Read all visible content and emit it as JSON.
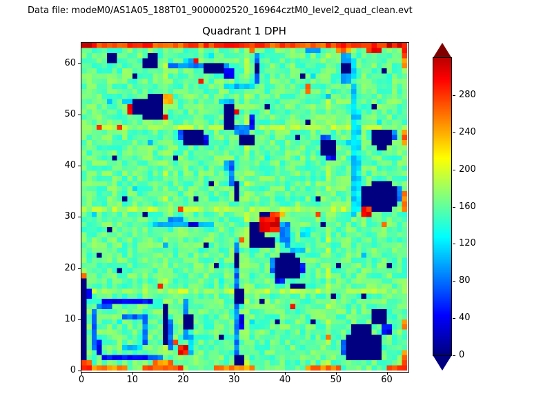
{
  "header": {
    "datafile_label": "Data file: modeM0/AS1A05_188T01_9000002520_16964cztM0_level2_quad_clean.evt"
  },
  "chart_data": {
    "type": "heatmap",
    "title": "Quadrant 1 DPH",
    "xlabel": "",
    "ylabel": "",
    "xlim": [
      0,
      64
    ],
    "ylim": [
      0,
      64
    ],
    "xticks": [
      0,
      10,
      20,
      30,
      40,
      50,
      60
    ],
    "yticks": [
      0,
      10,
      20,
      30,
      40,
      50,
      60
    ],
    "grid": false,
    "colormap": "jet",
    "colorbar": {
      "ticks": [
        0,
        40,
        80,
        120,
        160,
        200,
        240,
        280
      ],
      "vmin": 0,
      "vmax": 320,
      "extend": "both",
      "low_arrow_color": "#000080",
      "high_arrow_color": "#800000"
    },
    "background_value": 160,
    "noise_amplitude": 20,
    "features_format": "[x, y, w, h, value] in data coords, y measured from bottom; painted in order over background",
    "features": [
      [
        0,
        47,
        64,
        1,
        182
      ],
      [
        0,
        31,
        64,
        1,
        182
      ],
      [
        0,
        15,
        64,
        1,
        182
      ],
      [
        16,
        0,
        1,
        64,
        176
      ],
      [
        32,
        0,
        1,
        64,
        176
      ],
      [
        48,
        0,
        1,
        64,
        176
      ],
      [
        0,
        63,
        64,
        1,
        275
      ],
      [
        60,
        63,
        4,
        1,
        300
      ],
      [
        0,
        63,
        3,
        1,
        300
      ],
      [
        63,
        62,
        1,
        1,
        290
      ],
      [
        5,
        60,
        2,
        2,
        0
      ],
      [
        12,
        59,
        3,
        2,
        0
      ],
      [
        13,
        61,
        2,
        1,
        0
      ],
      [
        17,
        59,
        12,
        1,
        90
      ],
      [
        20,
        60,
        3,
        1,
        110
      ],
      [
        24,
        58,
        4,
        2,
        0
      ],
      [
        28,
        57,
        2,
        2,
        40
      ],
      [
        22,
        60,
        1,
        1,
        300
      ],
      [
        33,
        62,
        1,
        1,
        250
      ],
      [
        34,
        56,
        1,
        6,
        80
      ],
      [
        34,
        58,
        1,
        2,
        0
      ],
      [
        44,
        62,
        3,
        1,
        90
      ],
      [
        50,
        62,
        3,
        1,
        250
      ],
      [
        51,
        56,
        2,
        6,
        90
      ],
      [
        51,
        58,
        2,
        2,
        0
      ],
      [
        53,
        57,
        1,
        4,
        110
      ],
      [
        56,
        62,
        3,
        1,
        290
      ],
      [
        63,
        59,
        1,
        3,
        260
      ],
      [
        28,
        55,
        6,
        1,
        110
      ],
      [
        44,
        54,
        1,
        1,
        250
      ],
      [
        10,
        50,
        6,
        3,
        0
      ],
      [
        12,
        49,
        4,
        1,
        0
      ],
      [
        13,
        53,
        3,
        1,
        0
      ],
      [
        9,
        50,
        1,
        2,
        290
      ],
      [
        16,
        52,
        2,
        2,
        250
      ],
      [
        8,
        52,
        2,
        1,
        110
      ],
      [
        16,
        49,
        1,
        1,
        300
      ],
      [
        28,
        47,
        2,
        6,
        0
      ],
      [
        30,
        46,
        3,
        2,
        80
      ],
      [
        27,
        52,
        3,
        1,
        110
      ],
      [
        31,
        44,
        3,
        2,
        0
      ],
      [
        33,
        47,
        1,
        3,
        40
      ],
      [
        30,
        50,
        1,
        1,
        300
      ],
      [
        20,
        44,
        4,
        3,
        0
      ],
      [
        19,
        45,
        1,
        2,
        80
      ],
      [
        24,
        44,
        1,
        2,
        40
      ],
      [
        47,
        42,
        3,
        3,
        0
      ],
      [
        48,
        41,
        2,
        1,
        40
      ],
      [
        47,
        45,
        2,
        1,
        80
      ],
      [
        57,
        44,
        4,
        3,
        0
      ],
      [
        58,
        43,
        2,
        1,
        0
      ],
      [
        61,
        45,
        1,
        2,
        80
      ],
      [
        63,
        44,
        1,
        3,
        260
      ],
      [
        53,
        30,
        1,
        26,
        115
      ],
      [
        54,
        31,
        1,
        20,
        125
      ],
      [
        55,
        32,
        7,
        4,
        0
      ],
      [
        56,
        31,
        5,
        1,
        0
      ],
      [
        57,
        36,
        4,
        1,
        0
      ],
      [
        55,
        30,
        2,
        2,
        290
      ],
      [
        62,
        33,
        1,
        3,
        80
      ],
      [
        63,
        31,
        1,
        4,
        260
      ],
      [
        33,
        24,
        3,
        5,
        0
      ],
      [
        36,
        24,
        2,
        2,
        0
      ],
      [
        35,
        29,
        2,
        2,
        0
      ],
      [
        35,
        27,
        4,
        3,
        305
      ],
      [
        37,
        30,
        2,
        1,
        290
      ],
      [
        39,
        25,
        1,
        4,
        90
      ],
      [
        40,
        24,
        1,
        5,
        90
      ],
      [
        41,
        23,
        3,
        1,
        110
      ],
      [
        43,
        26,
        2,
        2,
        120
      ],
      [
        39,
        30,
        1,
        1,
        250
      ],
      [
        14,
        28,
        12,
        1,
        110
      ],
      [
        17,
        29,
        3,
        1,
        80
      ],
      [
        21,
        28,
        2,
        1,
        40
      ],
      [
        29,
        36,
        1,
        5,
        80
      ],
      [
        30,
        33,
        1,
        4,
        0
      ],
      [
        28,
        39,
        1,
        2,
        110
      ],
      [
        38,
        18,
        5,
        4,
        0
      ],
      [
        39,
        22,
        3,
        1,
        0
      ],
      [
        43,
        19,
        1,
        2,
        40
      ],
      [
        38,
        17,
        2,
        1,
        40
      ],
      [
        37,
        19,
        1,
        3,
        80
      ],
      [
        41,
        16,
        3,
        1,
        0
      ],
      [
        30,
        12,
        1,
        13,
        80
      ],
      [
        30,
        13,
        2,
        3,
        0
      ],
      [
        30,
        20,
        1,
        3,
        0
      ],
      [
        31,
        25,
        1,
        1,
        270
      ],
      [
        30,
        0,
        1,
        12,
        85
      ],
      [
        30,
        0,
        2,
        3,
        0
      ],
      [
        31,
        8,
        1,
        3,
        40
      ],
      [
        0,
        2,
        1,
        16,
        0
      ],
      [
        1,
        14,
        1,
        2,
        40
      ],
      [
        4,
        13,
        10,
        1,
        40
      ],
      [
        3,
        12,
        3,
        1,
        80
      ],
      [
        16,
        5,
        1,
        8,
        0
      ],
      [
        17,
        4,
        1,
        6,
        80
      ],
      [
        2,
        4,
        1,
        8,
        80
      ],
      [
        3,
        3,
        1,
        3,
        40
      ],
      [
        4,
        2,
        9,
        1,
        40
      ],
      [
        13,
        2,
        3,
        1,
        80
      ],
      [
        8,
        10,
        5,
        1,
        80
      ],
      [
        12,
        5,
        1,
        5,
        80
      ],
      [
        8,
        4,
        4,
        1,
        110
      ],
      [
        19,
        3,
        2,
        2,
        300
      ],
      [
        18,
        5,
        1,
        1,
        260
      ],
      [
        20,
        6,
        1,
        8,
        80
      ],
      [
        20,
        8,
        2,
        3,
        0
      ],
      [
        21,
        3,
        1,
        4,
        110
      ],
      [
        52,
        2,
        7,
        5,
        0
      ],
      [
        53,
        7,
        4,
        2,
        0
      ],
      [
        57,
        9,
        3,
        3,
        0
      ],
      [
        51,
        3,
        1,
        3,
        80
      ],
      [
        59,
        7,
        2,
        2,
        40
      ],
      [
        63,
        1,
        1,
        3,
        260
      ],
      [
        63,
        8,
        1,
        2,
        250
      ],
      [
        0,
        0,
        9,
        1,
        255
      ],
      [
        12,
        0,
        8,
        1,
        270
      ],
      [
        26,
        0,
        8,
        1,
        250
      ],
      [
        44,
        0,
        7,
        1,
        260
      ],
      [
        60,
        0,
        4,
        1,
        270
      ],
      [
        14,
        1,
        4,
        1,
        250
      ],
      [
        0,
        0,
        2,
        2,
        280
      ]
    ],
    "navy_points": [
      [
        44,
        48
      ],
      [
        46,
        33
      ],
      [
        8,
        33
      ],
      [
        5,
        27
      ],
      [
        25,
        36
      ],
      [
        45,
        9
      ],
      [
        26,
        20
      ],
      [
        49,
        14
      ],
      [
        6,
        41
      ],
      [
        22,
        33
      ],
      [
        47,
        28
      ],
      [
        3,
        22
      ],
      [
        36,
        51
      ],
      [
        42,
        45
      ],
      [
        57,
        51
      ],
      [
        60,
        20
      ],
      [
        35,
        13
      ],
      [
        27,
        6
      ],
      [
        38,
        9
      ],
      [
        24,
        24
      ],
      [
        10,
        57
      ],
      [
        18,
        41
      ],
      [
        50,
        20
      ],
      [
        55,
        14
      ],
      [
        12,
        30
      ],
      [
        7,
        19
      ],
      [
        43,
        57
      ],
      [
        59,
        58
      ]
    ],
    "hot_points": [
      [
        23,
        56
      ],
      [
        44,
        55
      ],
      [
        7,
        47
      ],
      [
        19,
        31
      ],
      [
        41,
        12
      ],
      [
        48,
        6
      ],
      [
        59,
        28
      ],
      [
        3,
        47
      ],
      [
        0,
        18
      ],
      [
        15,
        16
      ],
      [
        46,
        30
      ]
    ],
    "cool_points": [
      [
        10,
        35
      ],
      [
        40,
        35
      ],
      [
        5,
        52
      ],
      [
        45,
        57
      ],
      [
        16,
        24
      ],
      [
        52,
        44
      ],
      [
        27,
        17
      ],
      [
        7,
        9
      ],
      [
        36,
        41
      ],
      [
        58,
        48
      ],
      [
        13,
        44
      ],
      [
        48,
        53
      ],
      [
        33,
        9
      ],
      [
        55,
        22
      ],
      [
        2,
        30
      ],
      [
        25,
        61
      ]
    ]
  }
}
